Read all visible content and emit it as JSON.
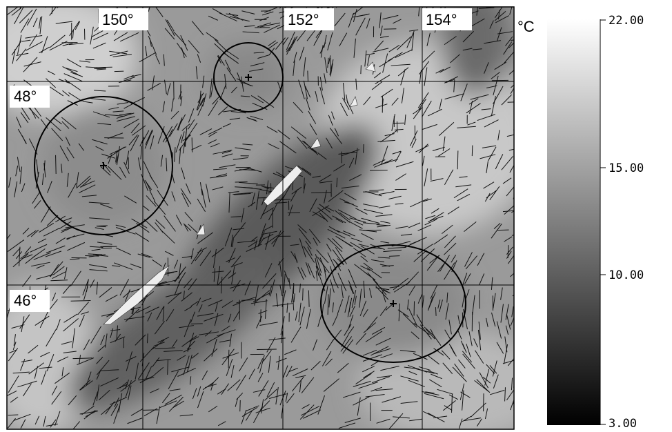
{
  "map": {
    "lon_labels": [
      "150°",
      "152°",
      "154°"
    ],
    "lat_labels": [
      "48°",
      "46°"
    ]
  },
  "colorbar": {
    "unit": "°C",
    "tick_labels": [
      "22.00",
      "15.00",
      "10.00",
      "3.00"
    ]
  }
}
